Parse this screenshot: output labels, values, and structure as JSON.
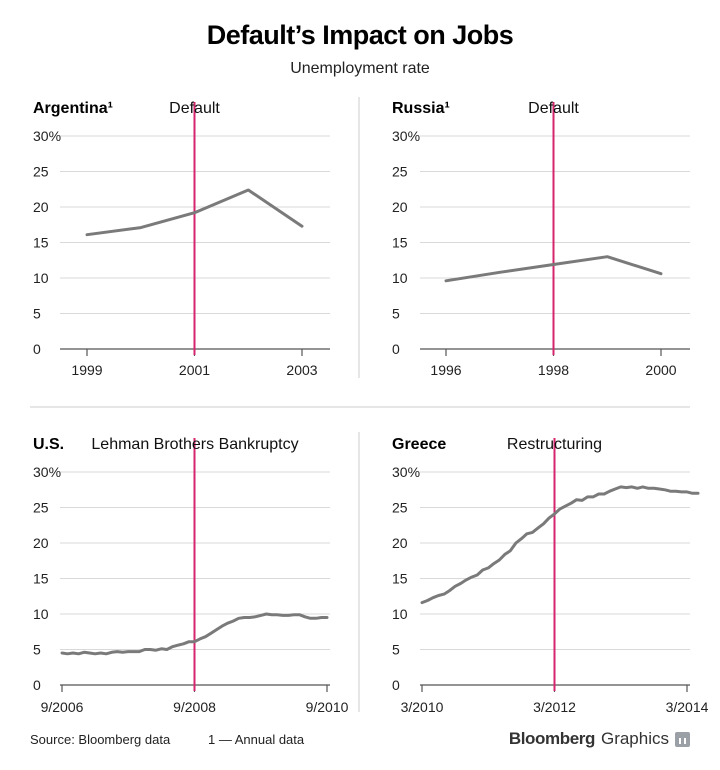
{
  "title": "Default’s Impact on Jobs",
  "subtitle": "Unemployment rate",
  "footer": {
    "source": "Source: Bloomberg data",
    "note": "1 — Annual data",
    "brand_bold": "Bloomberg",
    "brand_light": "Graphics"
  },
  "colors": {
    "line": "#7a7a7a",
    "marker": "#d6246e",
    "axis": "#555555",
    "divider": "#cccccc"
  },
  "chart_data": [
    {
      "type": "line",
      "title": "Argentina¹",
      "annotation": "Default",
      "y_ticks": [
        "30%",
        "25",
        "20",
        "15",
        "10",
        "5",
        "0"
      ],
      "ylim": [
        0,
        30
      ],
      "x_ticks": [
        "1999",
        "2001",
        "2003"
      ],
      "x_tick_values": [
        1999,
        2001,
        2003
      ],
      "xlim": [
        1999,
        2003
      ],
      "marker_x": 2001,
      "x": [
        1999,
        2000,
        2001,
        2002,
        2003
      ],
      "values": [
        16.1,
        17.1,
        19.2,
        22.4,
        17.3
      ]
    },
    {
      "type": "line",
      "title": "Russia¹",
      "annotation": "Default",
      "y_ticks": [
        "30%",
        "25",
        "20",
        "15",
        "10",
        "5",
        "0"
      ],
      "ylim": [
        0,
        30
      ],
      "x_ticks": [
        "1996",
        "1998",
        "2000"
      ],
      "x_tick_values": [
        1996,
        1998,
        2000
      ],
      "xlim": [
        1996,
        2000
      ],
      "marker_x": 1998,
      "x": [
        1996,
        1997,
        1998,
        1999,
        2000
      ],
      "values": [
        9.6,
        10.8,
        11.9,
        13.0,
        10.6
      ]
    },
    {
      "type": "line",
      "title": "U.S.",
      "annotation": "Lehman Brothers Bankruptcy",
      "y_ticks": [
        "30%",
        "25",
        "20",
        "15",
        "10",
        "5",
        "0"
      ],
      "ylim": [
        0,
        30
      ],
      "x_ticks": [
        "9/2006",
        "9/2008",
        "9/2010"
      ],
      "x_tick_values": [
        0,
        24,
        48
      ],
      "xlim": [
        0,
        48
      ],
      "marker_x": 24,
      "x": [
        0,
        1,
        2,
        3,
        4,
        5,
        6,
        7,
        8,
        9,
        10,
        11,
        12,
        13,
        14,
        15,
        16,
        17,
        18,
        19,
        20,
        21,
        22,
        23,
        24,
        25,
        26,
        27,
        28,
        29,
        30,
        31,
        32,
        33,
        34,
        35,
        36,
        37,
        38,
        39,
        40,
        41,
        42,
        43,
        44,
        45,
        46,
        47,
        48
      ],
      "values": [
        4.5,
        4.4,
        4.5,
        4.4,
        4.6,
        4.5,
        4.4,
        4.5,
        4.4,
        4.6,
        4.7,
        4.6,
        4.7,
        4.7,
        4.7,
        5.0,
        5.0,
        4.9,
        5.1,
        5.0,
        5.4,
        5.6,
        5.8,
        6.1,
        6.1,
        6.5,
        6.8,
        7.3,
        7.8,
        8.3,
        8.7,
        9.0,
        9.4,
        9.5,
        9.5,
        9.6,
        9.8,
        10.0,
        9.9,
        9.9,
        9.8,
        9.8,
        9.9,
        9.9,
        9.6,
        9.4,
        9.4,
        9.5,
        9.5
      ]
    },
    {
      "type": "line",
      "title": "Greece",
      "annotation": "Restructuring",
      "y_ticks": [
        "30%",
        "25",
        "20",
        "15",
        "10",
        "5",
        "0"
      ],
      "ylim": [
        0,
        30
      ],
      "x_ticks": [
        "3/2010",
        "3/2012",
        "3/2014"
      ],
      "x_tick_values": [
        0,
        24,
        48
      ],
      "xlim": [
        0,
        48
      ],
      "marker_x": 24,
      "x": [
        0,
        1,
        2,
        3,
        4,
        5,
        6,
        7,
        8,
        9,
        10,
        11,
        12,
        13,
        14,
        15,
        16,
        17,
        18,
        19,
        20,
        21,
        22,
        23,
        24,
        25,
        26,
        27,
        28,
        29,
        30,
        31,
        32,
        33,
        34,
        35,
        36,
        37,
        38,
        39,
        40,
        41,
        42,
        43,
        44,
        45,
        46,
        47,
        48,
        49,
        50
      ],
      "values": [
        11.6,
        11.9,
        12.3,
        12.6,
        12.8,
        13.3,
        13.9,
        14.3,
        14.8,
        15.2,
        15.5,
        16.2,
        16.5,
        17.1,
        17.6,
        18.4,
        18.9,
        20.0,
        20.6,
        21.3,
        21.5,
        22.1,
        22.7,
        23.5,
        24.1,
        24.8,
        25.2,
        25.6,
        26.1,
        26.0,
        26.5,
        26.5,
        26.9,
        26.9,
        27.3,
        27.6,
        27.9,
        27.8,
        27.9,
        27.7,
        27.9,
        27.7,
        27.7,
        27.6,
        27.5,
        27.3,
        27.3,
        27.2,
        27.2,
        27.0,
        27.0
      ]
    }
  ]
}
